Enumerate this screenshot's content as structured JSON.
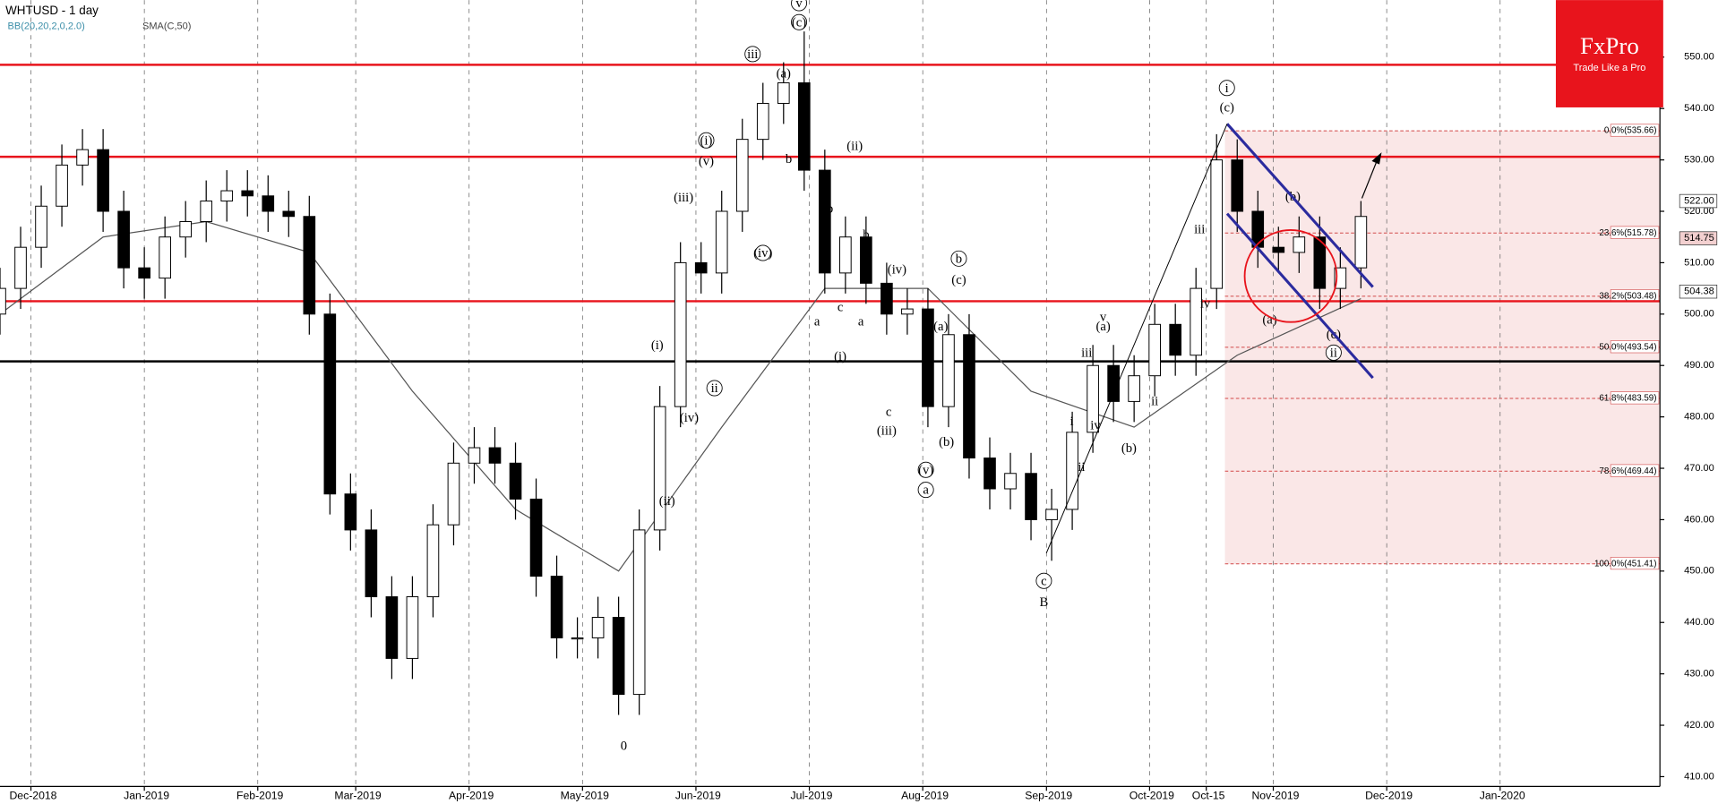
{
  "chart_data": {
    "type": "candlestick",
    "title": "WHTUSD - 1 day",
    "indicator_labels": [
      "BB(20,20,2,0,2.0)",
      "SMA(C,50)"
    ],
    "logo": {
      "brand": "FxPro",
      "tagline": "Trade Like a Pro"
    },
    "x": [
      0,
      4,
      8,
      12,
      16,
      20,
      24,
      28,
      32,
      36,
      40,
      44,
      48,
      52,
      56,
      60,
      64,
      68,
      72,
      76,
      80,
      84,
      88,
      92,
      96,
      100,
      104,
      108,
      112,
      116,
      120,
      124,
      128,
      132,
      136,
      140,
      144,
      148,
      152,
      156,
      160,
      164,
      168,
      172,
      176,
      180,
      184,
      188,
      192,
      196,
      200,
      204,
      208,
      212,
      216,
      220,
      224,
      228,
      232,
      236,
      240,
      244,
      248,
      252,
      256,
      260,
      264
    ],
    "open": [
      500,
      505,
      513,
      521,
      529,
      532,
      520,
      509,
      507,
      515,
      518,
      522,
      524,
      523,
      520,
      519,
      500,
      465,
      458,
      445,
      433,
      445,
      459,
      471,
      474,
      471,
      464,
      449,
      437,
      437,
      441,
      426,
      458,
      482,
      510,
      508,
      520,
      534,
      541,
      545,
      528,
      508,
      515,
      506,
      500,
      501,
      482,
      496,
      472,
      466,
      469,
      460,
      462,
      477,
      490,
      483,
      488,
      498,
      492,
      505,
      530,
      520,
      513,
      512,
      515,
      505,
      509
    ],
    "high": [
      509,
      517,
      525,
      533,
      536,
      536,
      524,
      513,
      519,
      522,
      526,
      528,
      528,
      527,
      524,
      523,
      504,
      469,
      462,
      449,
      449,
      463,
      475,
      478,
      478,
      475,
      468,
      453,
      441,
      445,
      445,
      462,
      486,
      514,
      514,
      524,
      538,
      545,
      549,
      555,
      532,
      519,
      519,
      510,
      505,
      505,
      500,
      500,
      476,
      473,
      473,
      466,
      481,
      494,
      494,
      492,
      502,
      502,
      509,
      535,
      534,
      524,
      517,
      519,
      519,
      513,
      522
    ],
    "low": [
      496,
      501,
      509,
      517,
      525,
      516,
      505,
      503,
      503,
      511,
      514,
      518,
      519,
      516,
      515,
      496,
      461,
      454,
      441,
      429,
      429,
      441,
      455,
      467,
      467,
      460,
      445,
      433,
      433,
      433,
      422,
      422,
      454,
      478,
      504,
      504,
      516,
      530,
      537,
      524,
      504,
      504,
      502,
      496,
      496,
      478,
      478,
      468,
      462,
      462,
      456,
      452,
      458,
      473,
      479,
      479,
      484,
      488,
      488,
      501,
      516,
      509,
      508,
      508,
      501,
      501,
      505
    ],
    "close": [
      505,
      513,
      521,
      529,
      532,
      520,
      509,
      507,
      515,
      518,
      522,
      524,
      523,
      520,
      519,
      500,
      465,
      458,
      445,
      433,
      445,
      459,
      471,
      474,
      471,
      464,
      449,
      437,
      437,
      441,
      426,
      458,
      482,
      510,
      508,
      520,
      534,
      541,
      545,
      528,
      508,
      515,
      506,
      500,
      501,
      482,
      496,
      472,
      466,
      469,
      460,
      462,
      477,
      490,
      483,
      488,
      498,
      492,
      505,
      530,
      520,
      513,
      512,
      515,
      505,
      509,
      519
    ],
    "up_color": "#ffffff",
    "down_color": "#000000",
    "sma": {
      "color": "#555555",
      "x": [
        0,
        20,
        40,
        60,
        80,
        100,
        120,
        140,
        160,
        180,
        200,
        220,
        240,
        264
      ],
      "values": [
        500,
        515,
        518,
        512,
        485,
        462,
        450,
        478,
        505,
        505,
        485,
        478,
        492,
        503
      ]
    },
    "xlim": [
      0,
      322
    ],
    "ylim": [
      408.1,
      561.1
    ],
    "xticks": [
      {
        "value": 6,
        "label": "Dec-2018"
      },
      {
        "value": 28,
        "label": "Jan-2019"
      },
      {
        "value": 50,
        "label": "Feb-2019"
      },
      {
        "value": 69,
        "label": "Mar-2019"
      },
      {
        "value": 91,
        "label": "Apr-2019"
      },
      {
        "value": 113,
        "label": "May-2019"
      },
      {
        "value": 135,
        "label": "Jun-2019"
      },
      {
        "value": 157,
        "label": "Jul-2019"
      },
      {
        "value": 179,
        "label": "Aug-2019"
      },
      {
        "value": 203,
        "label": "Sep-2019"
      },
      {
        "value": 223,
        "label": "Oct-2019"
      },
      {
        "value": 234,
        "label": "Oct-15"
      },
      {
        "value": 247,
        "label": "Nov-2019"
      },
      {
        "value": 269,
        "label": "Dec-2019"
      },
      {
        "value": 291,
        "label": "Jan-2020"
      }
    ],
    "yticks": [
      {
        "value": 410,
        "label": "410.00"
      },
      {
        "value": 420,
        "label": "420.00"
      },
      {
        "value": 430,
        "label": "430.00"
      },
      {
        "value": 440,
        "label": "440.00"
      },
      {
        "value": 450,
        "label": "450.00"
      },
      {
        "value": 460,
        "label": "460.00"
      },
      {
        "value": 470,
        "label": "470.00"
      },
      {
        "value": 480,
        "label": "480.00"
      },
      {
        "value": 490,
        "label": "490.00"
      },
      {
        "value": 500,
        "label": "500.00"
      },
      {
        "value": 510,
        "label": "510.00"
      },
      {
        "value": 520,
        "label": "520.00"
      },
      {
        "value": 530,
        "label": "530.00"
      },
      {
        "value": 540,
        "label": "540.00"
      },
      {
        "value": 550,
        "label": "550.00"
      }
    ],
    "hlines": [
      {
        "value": 548.5,
        "color": "#e8141c"
      },
      {
        "value": 530.6,
        "color": "#e8141c"
      },
      {
        "value": 502.5,
        "color": "#e8141c"
      },
      {
        "value": 490.8,
        "color": "#000000"
      }
    ],
    "fib_levels": [
      {
        "value": 535.66,
        "label": "0.0%(535.66)"
      },
      {
        "value": 515.78,
        "label": "23.6%(515.78)"
      },
      {
        "value": 503.48,
        "label": "38.2%(503.48)"
      },
      {
        "value": 493.54,
        "label": "50.0%(493.54)"
      },
      {
        "value": 483.59,
        "label": "61.8%(483.59)"
      },
      {
        "value": 469.44,
        "label": "78.6%(469.44)"
      },
      {
        "value": 451.41,
        "label": "100.0%(451.41)"
      }
    ],
    "price_labels": [
      {
        "value": 522,
        "label": "522.00"
      },
      {
        "value": 514.75,
        "label": "514.75"
      },
      {
        "value": 504.38,
        "label": "504.38"
      }
    ],
    "annotations": [
      {
        "text": "v",
        "x": 155,
        "y": 560.5,
        "circled": true
      },
      {
        "text": "(c)",
        "x": 155,
        "y": 556.8,
        "circled": true
      },
      {
        "text": "(a)",
        "x": 152,
        "y": 546.8,
        "circled": false
      },
      {
        "text": "iii",
        "x": 146,
        "y": 550.6,
        "circled": true
      },
      {
        "text": "(i)",
        "x": 137,
        "y": 533.8,
        "circled": true
      },
      {
        "text": "(v)",
        "x": 137,
        "y": 529.8,
        "circled": false
      },
      {
        "text": "(iii)",
        "x": 132.6,
        "y": 522.7,
        "circled": false
      },
      {
        "text": "(iv)",
        "x": 148,
        "y": 511.9,
        "circled": true
      },
      {
        "text": "b",
        "x": 153,
        "y": 530.2,
        "circled": false
      },
      {
        "text": "(ii)",
        "x": 165.8,
        "y": 532.7,
        "circled": false
      },
      {
        "text": "b",
        "x": 161,
        "y": 520.5,
        "circled": false
      },
      {
        "text": "b",
        "x": 168,
        "y": 515.5,
        "circled": false
      },
      {
        "text": "(iv)",
        "x": 174,
        "y": 508.7,
        "circled": false
      },
      {
        "text": "b",
        "x": 186,
        "y": 510.8,
        "circled": true
      },
      {
        "text": "(c)",
        "x": 186,
        "y": 506.7,
        "circled": false
      },
      {
        "text": "a",
        "x": 158.5,
        "y": 498.6,
        "circled": false
      },
      {
        "text": "c",
        "x": 163,
        "y": 501.4,
        "circled": false
      },
      {
        "text": "a",
        "x": 167,
        "y": 498.6,
        "circled": false
      },
      {
        "text": "(i)",
        "x": 163,
        "y": 491.8,
        "circled": false
      },
      {
        "text": "(a)",
        "x": 182.5,
        "y": 497.6,
        "circled": false
      },
      {
        "text": "c",
        "x": 172.4,
        "y": 481,
        "circled": false
      },
      {
        "text": "(iii)",
        "x": 172,
        "y": 477.3,
        "circled": false
      },
      {
        "text": "(b)",
        "x": 183.6,
        "y": 475.2,
        "circled": false
      },
      {
        "text": "(v)",
        "x": 179.6,
        "y": 469.7,
        "circled": true
      },
      {
        "text": "a",
        "x": 179.6,
        "y": 465.8,
        "circled": true
      },
      {
        "text": "(i)",
        "x": 127.5,
        "y": 494,
        "circled": false
      },
      {
        "text": "ii",
        "x": 138.6,
        "y": 485.6,
        "circled": true
      },
      {
        "text": "(iv)",
        "x": 133.7,
        "y": 479.9,
        "circled": false
      },
      {
        "text": "(ii)",
        "x": 129.4,
        "y": 463.7,
        "circled": false
      },
      {
        "text": "0",
        "x": 121,
        "y": 416,
        "circled": false
      },
      {
        "text": "c",
        "x": 202.5,
        "y": 448.1,
        "circled": true
      },
      {
        "text": "B",
        "x": 202.5,
        "y": 444,
        "circled": false
      },
      {
        "text": "i",
        "x": 207.9,
        "y": 479.2,
        "circled": false
      },
      {
        "text": "ii",
        "x": 209.8,
        "y": 470.3,
        "circled": false
      },
      {
        "text": "iii",
        "x": 210.8,
        "y": 492.5,
        "circled": false
      },
      {
        "text": "iv",
        "x": 212.5,
        "y": 478.4,
        "circled": false
      },
      {
        "text": "v",
        "x": 214,
        "y": 499.5,
        "circled": false
      },
      {
        "text": "(a)",
        "x": 214,
        "y": 497.6,
        "circled": false
      },
      {
        "text": "(b)",
        "x": 219,
        "y": 473.9,
        "circled": false
      },
      {
        "text": "ii",
        "x": 224,
        "y": 483.1,
        "circled": false
      },
      {
        "text": "iii",
        "x": 232.7,
        "y": 516.5,
        "circled": false
      },
      {
        "text": "iv",
        "x": 233.8,
        "y": 502.1,
        "circled": false
      },
      {
        "text": "i",
        "x": 238,
        "y": 544,
        "circled": true
      },
      {
        "text": "(c)",
        "x": 238,
        "y": 540.2,
        "circled": false
      },
      {
        "text": "(a)",
        "x": 246.3,
        "y": 498.9,
        "circled": false
      },
      {
        "text": "(b)",
        "x": 250.8,
        "y": 522.9,
        "circled": false
      },
      {
        "text": "(c)",
        "x": 258.7,
        "y": 496.1,
        "circled": false
      },
      {
        "text": "ii",
        "x": 258.7,
        "y": 492.5,
        "circled": true
      }
    ]
  }
}
